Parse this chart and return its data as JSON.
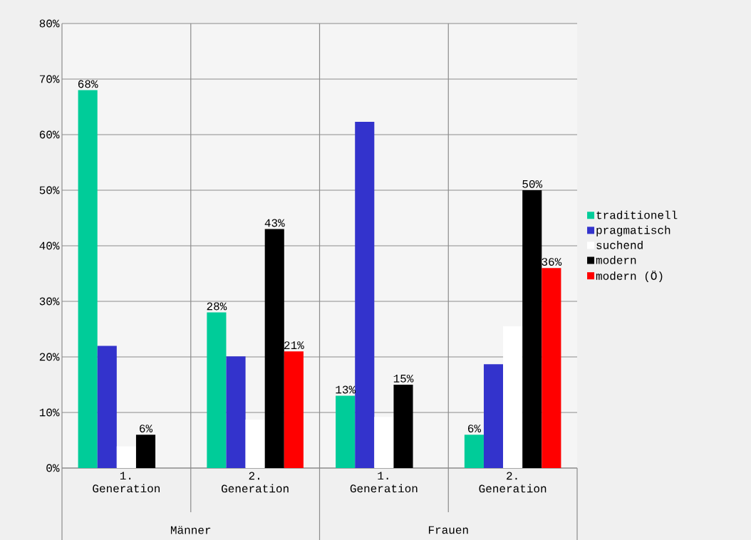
{
  "chart_data": {
    "type": "bar",
    "categories": [
      "1. Generation",
      "2. Generation",
      "1. Generation",
      "2. Generation"
    ],
    "series": [
      {
        "name": "traditionell",
        "color": "#00cc99",
        "values": [
          68,
          28,
          13,
          6
        ],
        "value_labels": [
          "68%",
          "28%",
          "13%",
          "6%"
        ]
      },
      {
        "name": "pragmatisch",
        "color": "#3333cc",
        "values": [
          22,
          20.1,
          62.3,
          18.7
        ],
        "value_labels": [
          null,
          null,
          null,
          null
        ]
      },
      {
        "name": "suchend",
        "color": "#ffffff",
        "values": [
          3.9,
          8.7,
          9.2,
          25.5
        ],
        "value_labels": [
          null,
          null,
          null,
          null
        ]
      },
      {
        "name": "modern",
        "color": "#000000",
        "values": [
          6,
          43,
          15,
          50
        ],
        "value_labels": [
          "6%",
          "43%",
          "15%",
          "50%"
        ]
      },
      {
        "name": "modern (Ö)",
        "color": "#ff0000",
        "values": [
          null,
          21,
          null,
          36
        ],
        "value_labels": [
          null,
          "21%",
          null,
          "36%"
        ]
      }
    ],
    "annotations": [
      "Männer",
      "Frauen"
    ],
    "ylim": [
      0,
      80
    ],
    "yticks": [
      {
        "value": 0,
        "label": "0%"
      },
      {
        "value": 10,
        "label": "10%"
      },
      {
        "value": 20,
        "label": "20%"
      },
      {
        "value": 30,
        "label": "30%"
      },
      {
        "value": 40,
        "label": "40%"
      },
      {
        "value": 50,
        "label": "50%"
      },
      {
        "value": 60,
        "label": "60%"
      },
      {
        "value": 70,
        "label": "70%"
      },
      {
        "value": 80,
        "label": "80%"
      }
    ],
    "grid": true,
    "legend": "right"
  }
}
